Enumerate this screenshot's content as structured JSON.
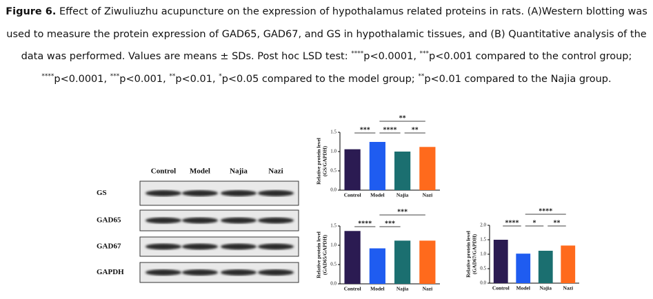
{
  "caption": {
    "label": "Figure 6.",
    "parts": [
      {
        "text": " Effect of Ziwuliuzhu acupuncture on the expression of hypothalamus related proteins in rats. (A)Western blotting was used to measure the protein expression of GAD65, GAD67, and GS in hypothalamic tissues, and (B) Quantitative analysis of the data was performed. Values are means ± SDs. Post hoc LSD test: "
      },
      {
        "sup": "****"
      },
      {
        "text": "p<0.0001, "
      },
      {
        "sup": "***"
      },
      {
        "text": "p<0.001 compared to the control group; "
      },
      {
        "sup": "****"
      },
      {
        "text": "p<0.0001, "
      },
      {
        "sup": "***"
      },
      {
        "text": "p<0.001, "
      },
      {
        "sup": "**"
      },
      {
        "text": "p<0.01, "
      },
      {
        "sup": "*"
      },
      {
        "text": "p<0.05 compared to the model group; "
      },
      {
        "sup": "**"
      },
      {
        "text": "p<0.01 compared to the Najia group."
      }
    ]
  },
  "blot": {
    "lanes": [
      "Control",
      "Model",
      "Najia",
      "Nazi"
    ],
    "rows": [
      "GS",
      "GAD65",
      "GAD67",
      "GAPDH"
    ]
  },
  "chart_data": [
    {
      "type": "bar",
      "ylabel": [
        "Relative protein level",
        "(GS/GAPDH)"
      ],
      "categories": [
        "Control",
        "Model",
        "Najia",
        "Nazi"
      ],
      "values": [
        1.06,
        1.25,
        1.0,
        1.12
      ],
      "colors": [
        "#2b1b52",
        "#1f5cf0",
        "#1b6f70",
        "#ff6a1c"
      ],
      "ylim": [
        0,
        1.5
      ],
      "yticks": [
        {
          "value": 0,
          "label": "0.0"
        },
        {
          "value": 0.5,
          "label": "0.5"
        },
        {
          "value": 1,
          "label": "1.0"
        },
        {
          "value": 1.5,
          "label": "1.5"
        }
      ],
      "annotations": [
        {
          "pair": [
            "Control",
            "Model"
          ],
          "label": "***"
        },
        {
          "pair": [
            "Model",
            "Najia"
          ],
          "label": "****"
        },
        {
          "pair": [
            "Najia",
            "Nazi"
          ],
          "label": "**"
        },
        {
          "pair": [
            "Model",
            "Nazi"
          ],
          "label": "**"
        }
      ]
    },
    {
      "type": "bar",
      "ylabel": [
        "Relative protein level",
        "(GAD65/GAPDH)"
      ],
      "categories": [
        "Control",
        "Model",
        "Najia",
        "Nazi"
      ],
      "values": [
        1.37,
        0.92,
        1.12,
        1.12
      ],
      "colors": [
        "#2b1b52",
        "#1f5cf0",
        "#1b6f70",
        "#ff6a1c"
      ],
      "ylim": [
        0,
        1.5
      ],
      "yticks": [
        {
          "value": 0,
          "label": "0.0"
        },
        {
          "value": 0.5,
          "label": "0.5"
        },
        {
          "value": 1,
          "label": "1.0"
        },
        {
          "value": 1.5,
          "label": "1.5"
        }
      ],
      "annotations": [
        {
          "pair": [
            "Control",
            "Model"
          ],
          "label": "****"
        },
        {
          "pair": [
            "Model",
            "Najia"
          ],
          "label": "***"
        },
        {
          "pair": [
            "Model",
            "Nazi"
          ],
          "label": "***"
        }
      ]
    },
    {
      "type": "bar",
      "ylabel": [
        "Relative protein level",
        "(GAD67/GAPDH)"
      ],
      "categories": [
        "Control",
        "Model",
        "Najia",
        "Nazi"
      ],
      "values": [
        1.5,
        1.02,
        1.12,
        1.3
      ],
      "colors": [
        "#2b1b52",
        "#1f5cf0",
        "#1b6f70",
        "#ff6a1c"
      ],
      "ylim": [
        0,
        2
      ],
      "yticks": [
        {
          "value": 0,
          "label": "0.0"
        },
        {
          "value": 0.5,
          "label": "0.5"
        },
        {
          "value": 1,
          "label": "1.0"
        },
        {
          "value": 1.5,
          "label": "1.5"
        },
        {
          "value": 2,
          "label": "2.0"
        }
      ],
      "annotations": [
        {
          "pair": [
            "Control",
            "Model"
          ],
          "label": "****"
        },
        {
          "pair": [
            "Model",
            "Najia"
          ],
          "label": "*"
        },
        {
          "pair": [
            "Najia",
            "Nazi"
          ],
          "label": "**"
        },
        {
          "pair": [
            "Model",
            "Nazi"
          ],
          "label": "****"
        }
      ]
    }
  ]
}
